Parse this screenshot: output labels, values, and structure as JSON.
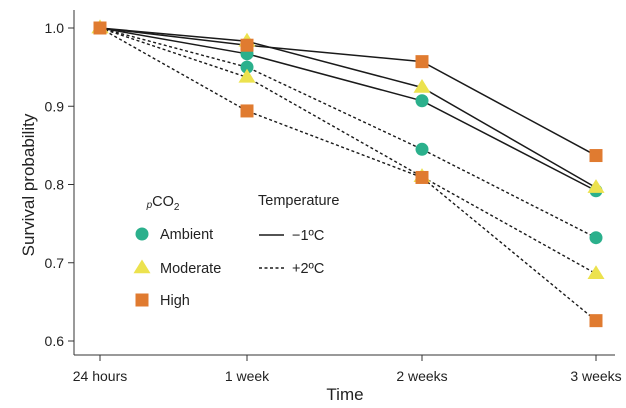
{
  "chart_data": {
    "type": "line",
    "xlabel": "Time",
    "ylabel": "Survival probability",
    "categories": [
      "24 hours",
      "1 week",
      "2 weeks",
      "3 weeks"
    ],
    "ylim": [
      0.58,
      1.02
    ],
    "yticks": [
      "0.6",
      "0.7",
      "0.8",
      "0.9",
      "1.0"
    ],
    "grid": false,
    "legend": {
      "position": "bottom-left",
      "marker_title_prefix": "p",
      "marker_title_main": "CO",
      "marker_title_sub": "2",
      "line_title": "Temperature",
      "groups": [
        {
          "label": "Ambient",
          "marker": "circle",
          "color": "#2bb08c"
        },
        {
          "label": "Moderate",
          "marker": "triangle",
          "color": "#ece24e"
        },
        {
          "label": "High",
          "marker": "square",
          "color": "#e07b30"
        }
      ],
      "temperatures": [
        {
          "label": "−1ºC",
          "style": "solid"
        },
        {
          "label": "+2ºC",
          "style": "dashed"
        }
      ]
    },
    "series": [
      {
        "group": "Ambient",
        "temperature": "−1ºC",
        "values": [
          1.0,
          0.967,
          0.907,
          0.792
        ]
      },
      {
        "group": "Moderate",
        "temperature": "−1ºC",
        "values": [
          1.0,
          0.983,
          0.924,
          0.796
        ]
      },
      {
        "group": "High",
        "temperature": "−1ºC",
        "values": [
          1.0,
          0.978,
          0.957,
          0.837
        ]
      },
      {
        "group": "Ambient",
        "temperature": "+2ºC",
        "values": [
          1.0,
          0.95,
          0.845,
          0.732
        ]
      },
      {
        "group": "Moderate",
        "temperature": "+2ºC",
        "values": [
          1.0,
          0.937,
          0.81,
          0.686
        ]
      },
      {
        "group": "High",
        "temperature": "+2ºC",
        "values": [
          1.0,
          0.894,
          0.809,
          0.626
        ]
      }
    ]
  }
}
